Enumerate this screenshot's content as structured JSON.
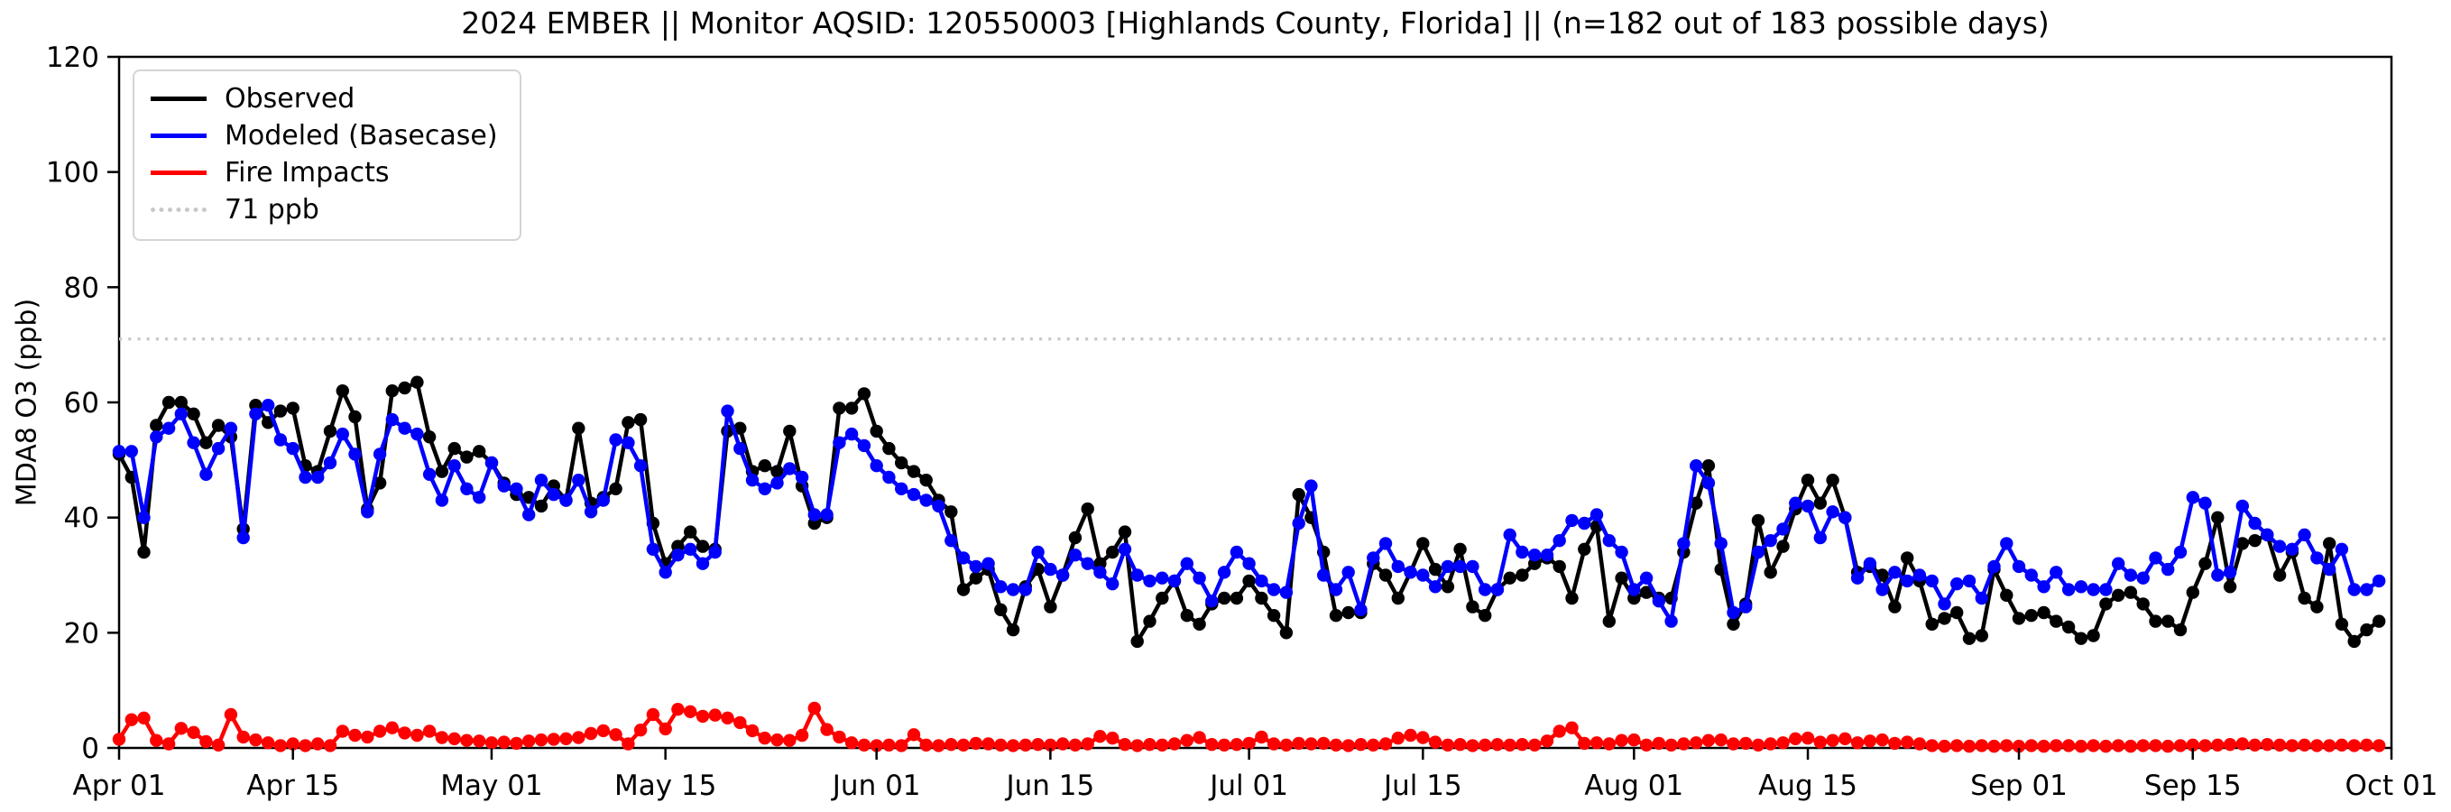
{
  "header": {
    "title": "2024 EMBER || Monitor AQSID: 120550003 [Highlands County, Florida] || (n=182 out of 183 possible days)"
  },
  "legend": {
    "items": [
      {
        "label": "Observed",
        "color": "#000000",
        "style": "solid"
      },
      {
        "label": "Modeled (Basecase)",
        "color": "#0000ff",
        "style": "solid"
      },
      {
        "label": "Fire Impacts",
        "color": "#ff0000",
        "style": "solid"
      },
      {
        "label": "71 ppb",
        "color": "#c8c8c8",
        "style": "dotted"
      }
    ]
  },
  "chart_data": {
    "type": "line",
    "title": "2024 EMBER || Monitor AQSID: 120550003 [Highlands County, Florida] || (n=182 out of 183 possible days)",
    "xlabel": "",
    "ylabel": "MDA8 O3 (ppb)",
    "ylim": [
      0,
      120
    ],
    "yticks": [
      0,
      20,
      40,
      60,
      80,
      100,
      120
    ],
    "grid": false,
    "legend_position": "upper left",
    "n_days": 183,
    "x_start_label": "Apr 01",
    "x_end_label": "Oct 01",
    "xticks": [
      {
        "day": 0,
        "label": "Apr 01"
      },
      {
        "day": 14,
        "label": "Apr 15"
      },
      {
        "day": 30,
        "label": "May 01"
      },
      {
        "day": 44,
        "label": "May 15"
      },
      {
        "day": 61,
        "label": "Jun 01"
      },
      {
        "day": 75,
        "label": "Jun 15"
      },
      {
        "day": 91,
        "label": "Jul 01"
      },
      {
        "day": 105,
        "label": "Jul 15"
      },
      {
        "day": 122,
        "label": "Aug 01"
      },
      {
        "day": 136,
        "label": "Aug 15"
      },
      {
        "day": 153,
        "label": "Sep 01"
      },
      {
        "day": 167,
        "label": "Sep 15"
      },
      {
        "day": 183,
        "label": "Oct 01"
      }
    ],
    "threshold": {
      "value": 71,
      "label": "71 ppb",
      "color": "#c8c8c8"
    },
    "series": [
      {
        "name": "Observed",
        "color": "#000000",
        "values": [
          51,
          47,
          34,
          56,
          60,
          60,
          58,
          53,
          56,
          54,
          38,
          59.5,
          56.5,
          58.5,
          59,
          49,
          48,
          55,
          62,
          57.5,
          41.5,
          46,
          62,
          62.5,
          63.5,
          54,
          48,
          52,
          50.5,
          51.5,
          49.5,
          46,
          44,
          43.5,
          42,
          45.5,
          43,
          55.5,
          42.5,
          43.5,
          45,
          56.5,
          57,
          39,
          32,
          35,
          37.5,
          35,
          34.5,
          55,
          55.5,
          48,
          49,
          48,
          55,
          45.5,
          39,
          40,
          59,
          59,
          61.5,
          55,
          52,
          49.5,
          48,
          46.5,
          43,
          41,
          27.5,
          29.5,
          31,
          24,
          20.5,
          28,
          31,
          24.5,
          30,
          36.5,
          41.5,
          32,
          34,
          37.5,
          18.5,
          22,
          26,
          29,
          23,
          21.5,
          25,
          26,
          26,
          29,
          26,
          23,
          20,
          44,
          40,
          34,
          23,
          23.5,
          23.5,
          32,
          30,
          26,
          30.5,
          35.5,
          31,
          28,
          34.5,
          24.5,
          23,
          27.5,
          29.5,
          30,
          32,
          33,
          31.5,
          26,
          34.5,
          38.5,
          22,
          29.5,
          26,
          27,
          26,
          26,
          34,
          42.5,
          49,
          31,
          21.5,
          25,
          39.5,
          30.5,
          35,
          41.5,
          46.5,
          42.5,
          46.5,
          40,
          30.5,
          31.5,
          30,
          24.5,
          33,
          29,
          21.5,
          22.5,
          23.5,
          19,
          19.5,
          31,
          26.5,
          22.5,
          23,
          23.5,
          22,
          21,
          19,
          19.5,
          25,
          26.5,
          27,
          25,
          22,
          22,
          20.5,
          27,
          32,
          40,
          28,
          35.5,
          36,
          37,
          30,
          34,
          26,
          24.5,
          35.5,
          21.5,
          18.5,
          20.5,
          22
        ]
      },
      {
        "name": "Modeled (Basecase)",
        "color": "#0000ff",
        "values": [
          51.5,
          51.5,
          40,
          54,
          55.5,
          58,
          53,
          47.5,
          52,
          55.5,
          36.5,
          58,
          59.5,
          53.5,
          52,
          47,
          47,
          49.5,
          54.5,
          51,
          41,
          51,
          57,
          55.5,
          54.5,
          47.5,
          43,
          49,
          45,
          43.5,
          49.5,
          45.5,
          45,
          40.5,
          46.5,
          44,
          43,
          46.5,
          41,
          43,
          53.5,
          53,
          49,
          34.5,
          30.5,
          33.5,
          34.5,
          32,
          34,
          58.5,
          52,
          46.5,
          45,
          46,
          48.5,
          47,
          40.5,
          40.5,
          53,
          54.5,
          52.5,
          49,
          47,
          45,
          44,
          43,
          42,
          36,
          33,
          31.5,
          32,
          28,
          27.5,
          27.5,
          34,
          31,
          30,
          33.5,
          32,
          30.5,
          28.5,
          34.5,
          30,
          29,
          29.5,
          29,
          32,
          29.5,
          25.5,
          30.5,
          34,
          32,
          29,
          27.5,
          27,
          39,
          45.5,
          30,
          27.5,
          30.5,
          24,
          33,
          35.5,
          31.5,
          30.5,
          30,
          28,
          31.5,
          31.5,
          31.5,
          27.5,
          27.5,
          37,
          34,
          33.5,
          33.5,
          36,
          39.5,
          39,
          40.5,
          36,
          34,
          27.5,
          29.5,
          25.5,
          22,
          35.5,
          49,
          46,
          35.5,
          23.5,
          24.5,
          34,
          36,
          38,
          42.5,
          42,
          36.5,
          41,
          40,
          29.5,
          32,
          27.5,
          30.5,
          29,
          30,
          29,
          25,
          28.5,
          29,
          26,
          31.5,
          35.5,
          31.5,
          30,
          28,
          30.5,
          27.5,
          28,
          27.5,
          27.5,
          32,
          30,
          29.5,
          33,
          31,
          34,
          43.5,
          42.5,
          30,
          30.5,
          42,
          39,
          37,
          35,
          34.5,
          37,
          33,
          31,
          34.5,
          27.5,
          27.5,
          29
        ]
      },
      {
        "name": "Fire Impacts",
        "color": "#ff0000",
        "values": [
          1.5,
          4.9,
          5.2,
          1.3,
          0.7,
          3.4,
          2.7,
          1.1,
          0.5,
          5.8,
          1.9,
          1.4,
          0.9,
          0.4,
          0.7,
          0.4,
          0.7,
          0.4,
          2.9,
          2.2,
          1.9,
          2.9,
          3.5,
          2.6,
          2.2,
          2.9,
          1.8,
          1.6,
          1.3,
          1.2,
          0.9,
          1.0,
          0.8,
          1.2,
          1.4,
          1.5,
          1.6,
          1.8,
          2.5,
          3.0,
          2.3,
          0.7,
          3.1,
          5.8,
          3.3,
          6.7,
          6.3,
          5.5,
          5.7,
          5.2,
          4.4,
          3.0,
          1.7,
          1.4,
          1.3,
          2.2,
          6.9,
          3.2,
          1.9,
          0.9,
          0.5,
          0.4,
          0.5,
          0.4,
          2.3,
          0.5,
          0.4,
          0.6,
          0.5,
          0.8,
          0.7,
          0.5,
          0.4,
          0.5,
          0.6,
          0.5,
          0.7,
          0.5,
          0.7,
          2.0,
          1.7,
          0.6,
          0.4,
          0.6,
          0.5,
          0.7,
          1.3,
          1.8,
          0.6,
          0.5,
          0.6,
          0.8,
          1.9,
          0.7,
          0.5,
          0.8,
          0.7,
          0.8,
          0.5,
          0.4,
          0.6,
          0.5,
          0.7,
          1.7,
          2.2,
          1.8,
          1.0,
          0.5,
          0.6,
          0.4,
          0.5,
          0.6,
          0.5,
          0.6,
          0.5,
          1.2,
          2.9,
          3.5,
          0.8,
          0.9,
          0.7,
          1.3,
          1.4,
          0.5,
          0.8,
          0.5,
          0.7,
          0.9,
          1.3,
          1.4,
          0.7,
          0.8,
          0.5,
          0.7,
          0.9,
          1.6,
          1.7,
          1.0,
          1.3,
          1.6,
          0.9,
          1.2,
          1.4,
          0.8,
          1.0,
          0.7,
          0.4,
          0.3,
          0.4,
          0.3,
          0.4,
          0.3,
          0.4,
          0.3,
          0.4,
          0.3,
          0.4,
          0.4,
          0.3,
          0.4,
          0.3,
          0.4,
          0.3,
          0.4,
          0.4,
          0.3,
          0.4,
          0.5,
          0.4,
          0.5,
          0.6,
          0.7,
          0.5,
          0.6,
          0.5,
          0.4,
          0.5,
          0.4,
          0.4,
          0.5,
          0.4,
          0.5,
          0.4
        ]
      }
    ]
  }
}
